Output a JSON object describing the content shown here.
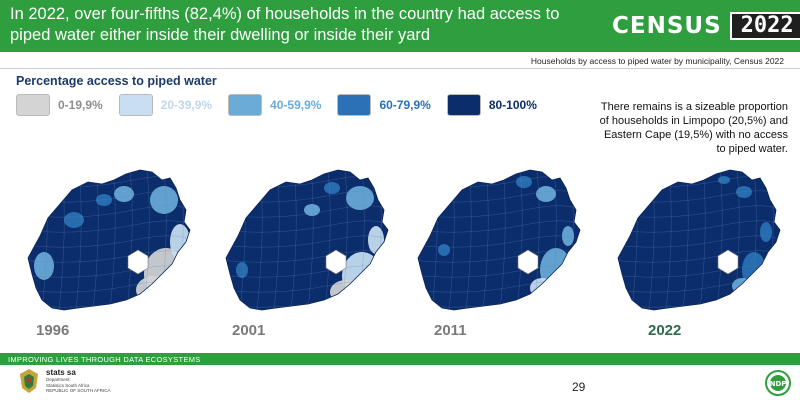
{
  "header": {
    "headline": "In 2022, over four-fifths (82,4%) of households in the country had access to piped water either inside their dwelling or inside their yard",
    "logo_word": "CENSUS",
    "logo_year": "2022"
  },
  "source": "Households by access to piped water by municipality, Census 2022",
  "legend": {
    "title": "Percentage access to piped water",
    "items": [
      {
        "label": "0-19,9%",
        "color": "#d4d4d4",
        "text_color": "#8e8e8e"
      },
      {
        "label": "20-39,9%",
        "color": "#c9dff1",
        "text_color": "#c0d6ea"
      },
      {
        "label": "40-59,9%",
        "color": "#6aabd8",
        "text_color": "#6aabd8"
      },
      {
        "label": "60-79,9%",
        "color": "#2a72b5",
        "text_color": "#2a72b5"
      },
      {
        "label": "80-100%",
        "color": "#0c2d6b",
        "text_color": "#0c2d6b"
      }
    ]
  },
  "note": "There remains is a sizeable proportion of households in Limpopo (20,5%) and Eastern Cape (19,5%) with no access to piped water.",
  "maps": [
    {
      "year": "1996",
      "year_color": "#7a7a7a"
    },
    {
      "year": "2001",
      "year_color": "#7a7a7a"
    },
    {
      "year": "2011",
      "year_color": "#7a7a7a"
    },
    {
      "year": "2022",
      "year_color": "#2e6b4a"
    }
  ],
  "footer": {
    "tagline": "IMPROVING LIVES THROUGH DATA ECOSYSTEMS",
    "org_name": "stats sa",
    "org_sub1": "Department:",
    "org_sub2": "Statistics South Africa",
    "org_sub3": "REPUBLIC OF SOUTH AFRICA",
    "page": "29",
    "ndp_label": "NDP"
  }
}
